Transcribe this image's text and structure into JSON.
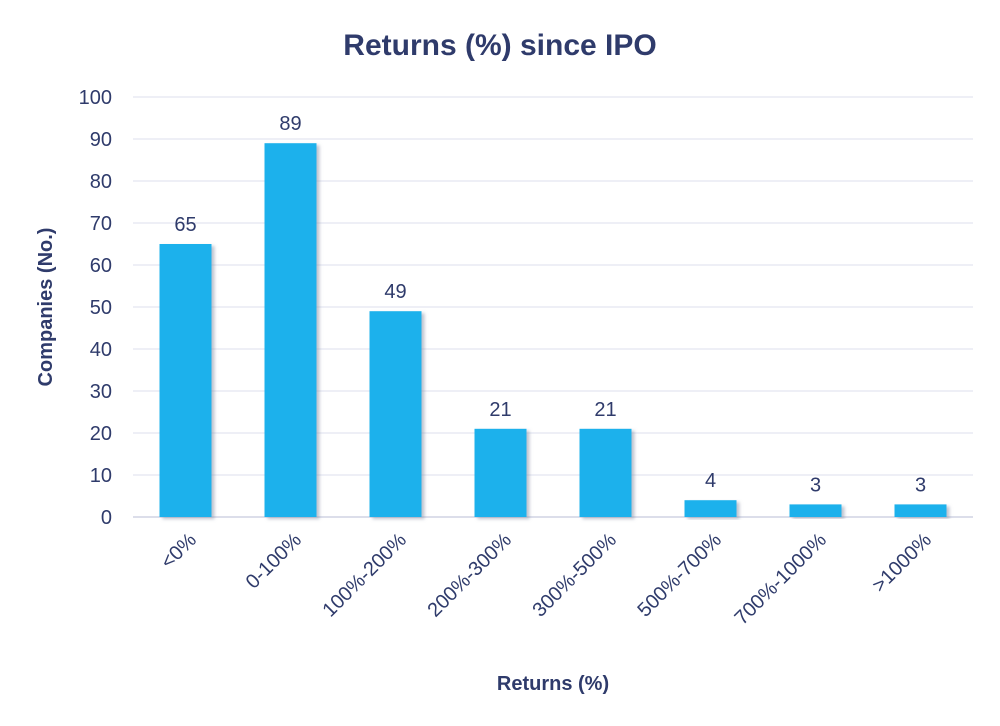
{
  "chart_data": {
    "type": "bar",
    "title": "Returns (%) since IPO",
    "xlabel": "Returns (%)",
    "ylabel": "Companies (No.)",
    "categories": [
      "<0%",
      "0-100%",
      "100%-200%",
      "200%-300%",
      "300%-500%",
      "500%-700%",
      "700%-1000%",
      ">1000%"
    ],
    "values": [
      65,
      89,
      49,
      21,
      21,
      4,
      3,
      3
    ],
    "ylim": [
      0,
      100
    ],
    "yticks": [
      0,
      10,
      20,
      30,
      40,
      50,
      60,
      70,
      80,
      90,
      100
    ],
    "grid": true,
    "legend": "none",
    "bar_color": "#1bb1ec",
    "bar_shadow_color": "#9aa3b8",
    "text_color": "#2f3b6b"
  }
}
